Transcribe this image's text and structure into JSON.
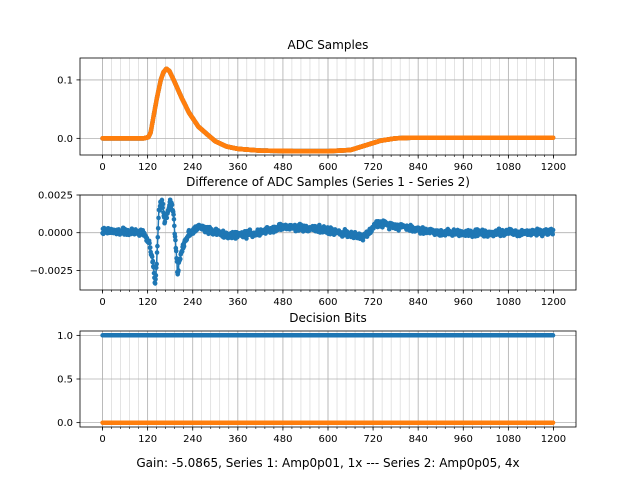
{
  "figure": {
    "caption": "Gain: -5.0865, Series 1: Amp0p01, 1x --- Series 2: Amp0p05, 4x",
    "colors": {
      "series1": "#1f77b4",
      "series2": "#ff7f0e",
      "grid": "#b0b0b0",
      "axis": "#000000"
    }
  },
  "chart_data": [
    {
      "type": "line",
      "title": "ADC Samples",
      "xlabel": "",
      "ylabel": "",
      "xlim": [
        -60,
        1260
      ],
      "ylim": [
        -0.0285,
        0.1375
      ],
      "x_ticks": [
        0,
        120,
        240,
        360,
        480,
        600,
        720,
        840,
        960,
        1080,
        1200
      ],
      "x_tick_labels": [
        "0",
        "120",
        "240",
        "360",
        "480",
        "600",
        "720",
        "840",
        "960",
        "1080",
        "1200"
      ],
      "y_ticks": [
        0.0,
        0.1
      ],
      "y_tick_labels": [
        "0.0",
        "0.1"
      ],
      "grid": true,
      "x_minor_step": 24,
      "n_samples": 1200,
      "series": [
        {
          "name": "Series 1",
          "color": "#1f77b4",
          "marker": "o",
          "keypoints": [
            [
              0,
              0
            ],
            [
              110,
              0
            ],
            [
              122,
              0.002
            ],
            [
              128,
              0.01
            ],
            [
              135,
              0.035
            ],
            [
              145,
              0.07
            ],
            [
              155,
              0.1
            ],
            [
              162,
              0.113
            ],
            [
              170,
              0.119
            ],
            [
              178,
              0.115
            ],
            [
              190,
              0.099
            ],
            [
              210,
              0.07
            ],
            [
              230,
              0.044
            ],
            [
              255,
              0.02
            ],
            [
              280,
              0.006
            ],
            [
              300,
              -0.005
            ],
            [
              330,
              -0.014
            ],
            [
              360,
              -0.018
            ],
            [
              420,
              -0.021
            ],
            [
              520,
              -0.022
            ],
            [
              600,
              -0.022
            ],
            [
              660,
              -0.02
            ],
            [
              700,
              -0.012
            ],
            [
              740,
              -0.004
            ],
            [
              780,
              0.0
            ],
            [
              820,
              0.001
            ],
            [
              1200,
              0.001
            ]
          ]
        },
        {
          "name": "Series 2",
          "color": "#ff7f0e",
          "marker": "o",
          "keypoints": [
            [
              0,
              0
            ],
            [
              110,
              0
            ],
            [
              122,
              0.002
            ],
            [
              128,
              0.01
            ],
            [
              135,
              0.035
            ],
            [
              145,
              0.07
            ],
            [
              155,
              0.1
            ],
            [
              162,
              0.113
            ],
            [
              170,
              0.119
            ],
            [
              178,
              0.115
            ],
            [
              190,
              0.099
            ],
            [
              210,
              0.07
            ],
            [
              230,
              0.044
            ],
            [
              255,
              0.02
            ],
            [
              280,
              0.006
            ],
            [
              300,
              -0.005
            ],
            [
              330,
              -0.014
            ],
            [
              360,
              -0.018
            ],
            [
              420,
              -0.021
            ],
            [
              520,
              -0.022
            ],
            [
              600,
              -0.022
            ],
            [
              660,
              -0.02
            ],
            [
              700,
              -0.012
            ],
            [
              740,
              -0.004
            ],
            [
              780,
              0.0
            ],
            [
              820,
              0.001
            ],
            [
              1200,
              0.001
            ]
          ]
        }
      ]
    },
    {
      "type": "line",
      "title": "Difference of ADC Samples (Series 1 - Series 2)",
      "xlabel": "",
      "ylabel": "",
      "xlim": [
        -60,
        1260
      ],
      "ylim": [
        -0.0038,
        0.0025
      ],
      "x_ticks": [
        0,
        120,
        240,
        360,
        480,
        600,
        720,
        840,
        960,
        1080,
        1200
      ],
      "x_tick_labels": [
        "0",
        "120",
        "240",
        "360",
        "480",
        "600",
        "720",
        "840",
        "960",
        "1080",
        "1200"
      ],
      "y_ticks": [
        0.0025,
        0.0,
        -0.0025
      ],
      "y_tick_labels": [
        "0.0025",
        "0.0000",
        "−0.0025"
      ],
      "grid": true,
      "x_minor_step": 24,
      "n_samples": 1200,
      "series": [
        {
          "name": "Series 1 - Series 2",
          "color": "#1f77b4",
          "marker": "o",
          "noise": 0.00022,
          "keypoints": [
            [
              0,
              0.0001
            ],
            [
              110,
              0.0
            ],
            [
              125,
              -0.0008
            ],
            [
              135,
              -0.0022
            ],
            [
              140,
              -0.0035
            ],
            [
              145,
              -0.0015
            ],
            [
              150,
              0.0015
            ],
            [
              158,
              0.0022
            ],
            [
              165,
              0.0008
            ],
            [
              172,
              0.0012
            ],
            [
              180,
              0.0021
            ],
            [
              188,
              0.0015
            ],
            [
              195,
              -0.001
            ],
            [
              200,
              -0.0028
            ],
            [
              205,
              -0.0018
            ],
            [
              215,
              -0.0008
            ],
            [
              230,
              0.0
            ],
            [
              260,
              0.0004
            ],
            [
              300,
              0.0
            ],
            [
              340,
              -0.0002
            ],
            [
              420,
              0.0
            ],
            [
              480,
              0.0004
            ],
            [
              560,
              0.0003
            ],
            [
              640,
              0.0
            ],
            [
              680,
              -0.0003
            ],
            [
              700,
              -0.0002
            ],
            [
              730,
              0.0006
            ],
            [
              780,
              0.0005
            ],
            [
              840,
              0.0002
            ],
            [
              900,
              0.0
            ],
            [
              1000,
              0.0
            ],
            [
              1100,
              0.0
            ],
            [
              1200,
              0.0001
            ]
          ]
        }
      ]
    },
    {
      "type": "scatter",
      "title": "Decision Bits",
      "xlabel": "Gain: -5.0865, Series 1: Amp0p01, 1x --- Series 2: Amp0p05, 4x",
      "ylabel": "",
      "xlim": [
        -60,
        1260
      ],
      "ylim": [
        -0.05,
        1.05
      ],
      "x_ticks": [
        0,
        120,
        240,
        360,
        480,
        600,
        720,
        840,
        960,
        1080,
        1200
      ],
      "x_tick_labels": [
        "0",
        "120",
        "240",
        "360",
        "480",
        "600",
        "720",
        "840",
        "960",
        "1080",
        "1200"
      ],
      "y_ticks": [
        0.0,
        0.5,
        1.0
      ],
      "y_tick_labels": [
        "0.0",
        "0.5",
        "1.0"
      ],
      "grid": true,
      "x_minor_step": 24,
      "n_samples": 1200,
      "series": [
        {
          "name": "Series 1",
          "color": "#1f77b4",
          "marker": "o",
          "constant": 1.0
        },
        {
          "name": "Series 2",
          "color": "#ff7f0e",
          "marker": "o",
          "constant": 0.0
        }
      ]
    }
  ]
}
